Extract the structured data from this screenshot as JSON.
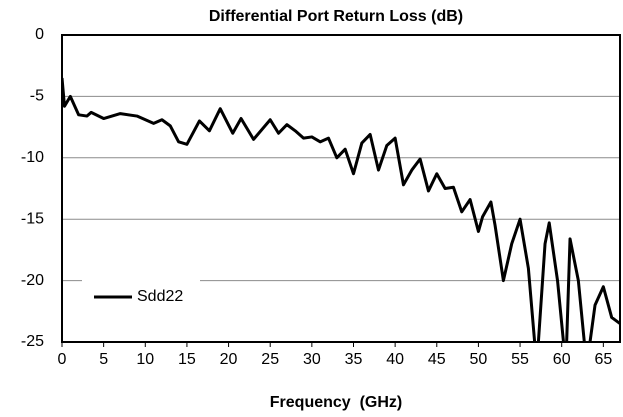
{
  "chart_data": {
    "type": "line",
    "title": "Differential Port Return Loss (dB)",
    "x_label": "Frequency  (GHz)",
    "x": [
      0,
      0.3,
      1,
      2,
      3,
      3.5,
      5,
      7,
      9,
      11,
      12,
      13,
      14,
      15,
      16.5,
      17.7,
      19,
      20.5,
      21.5,
      23,
      25,
      26,
      27,
      28,
      29,
      30,
      31,
      32,
      33,
      34,
      35,
      36,
      37,
      38,
      39,
      40,
      41,
      42,
      43,
      44,
      45,
      46,
      47,
      48,
      49,
      50,
      50.5,
      51.5,
      52,
      53,
      54,
      55,
      56,
      57,
      58,
      58.5,
      59.5,
      60.5,
      61,
      62,
      63,
      64,
      65,
      66,
      67
    ],
    "series": [
      {
        "name": "Sdd22",
        "color": "#000000",
        "values": [
          -3.5,
          -5.8,
          -5.0,
          -6.5,
          -6.6,
          -6.3,
          -6.8,
          -6.4,
          -6.6,
          -7.2,
          -6.9,
          -7.4,
          -8.7,
          -8.9,
          -7.0,
          -7.8,
          -6.0,
          -8.0,
          -6.8,
          -8.5,
          -6.9,
          -8.0,
          -7.3,
          -7.8,
          -8.4,
          -8.3,
          -8.7,
          -8.4,
          -10.0,
          -9.3,
          -11.3,
          -8.8,
          -8.1,
          -11.0,
          -9.0,
          -8.4,
          -12.2,
          -11.0,
          -10.1,
          -12.7,
          -11.3,
          -12.5,
          -12.4,
          -14.4,
          -13.4,
          -16.0,
          -14.8,
          -13.6,
          -15.5,
          -20.0,
          -17.0,
          -15.0,
          -19.0,
          -27.0,
          -17.0,
          -15.3,
          -20.0,
          -27.0,
          -16.6,
          -20.0,
          -27.0,
          -22.0,
          -20.5,
          -23.0,
          -23.5
        ]
      }
    ],
    "xlim": [
      0,
      67
    ],
    "ylim": [
      -25,
      0
    ],
    "xticks": [
      0,
      5,
      10,
      15,
      20,
      25,
      30,
      35,
      40,
      45,
      50,
      55,
      60,
      65
    ],
    "yticks": [
      0,
      -5,
      -10,
      -15,
      -20,
      -25
    ],
    "grid": true,
    "legend": "lower left"
  }
}
